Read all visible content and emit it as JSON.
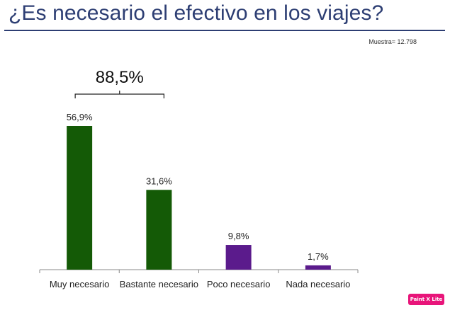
{
  "title": "¿Es necesario el efectivo en los viajes?",
  "sample_label": "Muestra= 12.798",
  "badge_text": "Paint X Lite",
  "colors": {
    "positive": "#145a06",
    "negative": "#5b1b8c",
    "title": "#2d3e73",
    "axis": "#888888"
  },
  "chart_data": {
    "type": "bar",
    "title": "¿Es necesario el efectivo en los viajes?",
    "categories": [
      "Muy necesario",
      "Bastante necesario",
      "Poco necesario",
      "Nada necesario"
    ],
    "values": [
      56.9,
      31.6,
      9.8,
      1.7
    ],
    "value_labels": [
      "56,9%",
      "31,6%",
      "9,8%",
      "1,7%"
    ],
    "bar_colors": [
      "#145a06",
      "#145a06",
      "#5b1b8c",
      "#5b1b8c"
    ],
    "annotation": {
      "text": "88,5%",
      "spans": [
        "Muy necesario",
        "Bastante necesario"
      ]
    },
    "ylim": [
      0,
      60
    ],
    "grid": false,
    "xlabel": "",
    "ylabel": ""
  }
}
